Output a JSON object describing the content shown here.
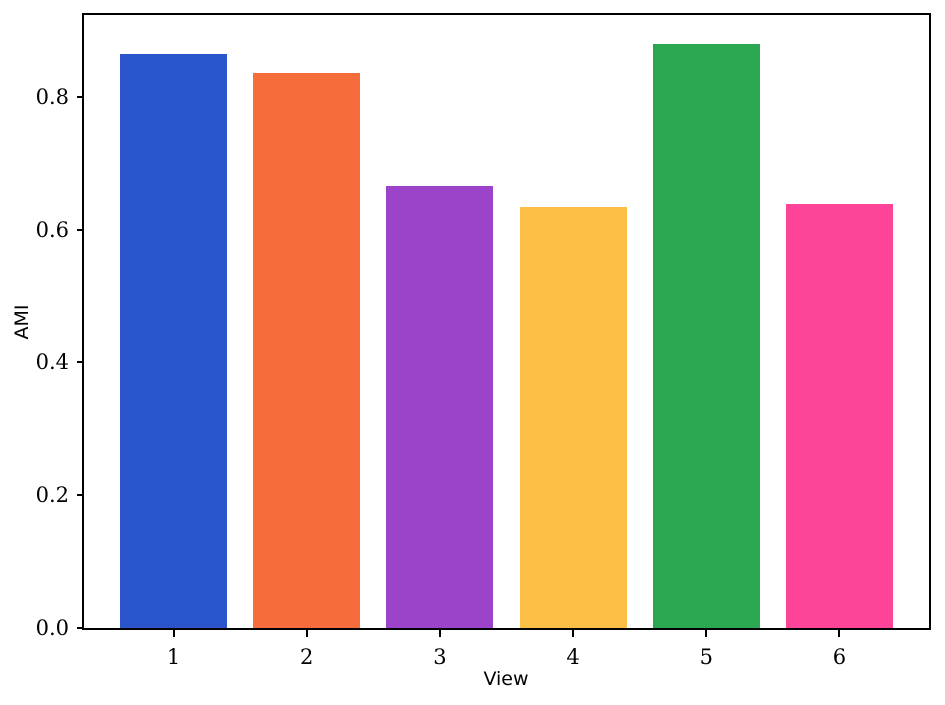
{
  "chart_data": {
    "type": "bar",
    "title": "",
    "categories": [
      "1",
      "2",
      "3",
      "4",
      "5",
      "6"
    ],
    "values": [
      0.865,
      0.836,
      0.666,
      0.634,
      0.88,
      0.638
    ],
    "bar_colors": [
      "#2a54cb",
      "#f76c3b",
      "#9b44c9",
      "#fdbe45",
      "#2aa750",
      "#fd4498"
    ],
    "xlabel": "View",
    "ylabel": "AMI",
    "ylim": [
      0,
      0.923
    ],
    "yticks": [
      0.0,
      0.2,
      0.4,
      0.6,
      0.8
    ],
    "ytick_labels": [
      "0.0",
      "0.2",
      "0.4",
      "0.6",
      "0.8"
    ],
    "grid": false,
    "legend_position": "none",
    "background_color": "#ffffff",
    "spine_color": "#000000",
    "tick_color": "#000000"
  }
}
